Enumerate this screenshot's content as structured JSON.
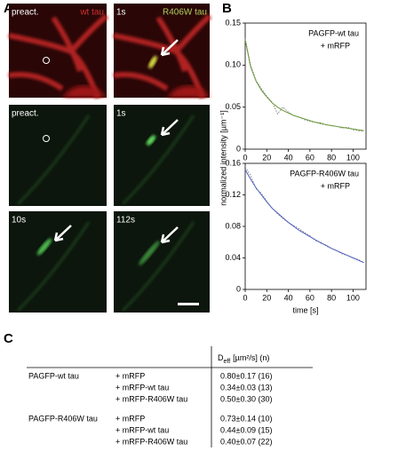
{
  "panel_labels": {
    "a": "A",
    "b": "B",
    "c": "C"
  },
  "panel_a": {
    "top_left": "preact.",
    "red_label": "wt tau",
    "top_right": "1s",
    "green_label": "R406W tau",
    "mid_left": "preact.",
    "mid_right": "1s",
    "bottom_left": "10s",
    "bottom_right": "112s"
  },
  "chart_data": [
    {
      "type": "line",
      "annotation": [
        "PAGFP-wt tau",
        "+ mRFP"
      ],
      "ylabel": "normalized intensity [µm⁻¹]",
      "x": [
        0,
        5,
        10,
        15,
        20,
        25,
        30,
        35,
        40,
        45,
        50,
        55,
        60,
        65,
        70,
        75,
        80,
        85,
        90,
        95,
        100,
        105,
        110
      ],
      "series": [
        {
          "color": "#777777",
          "values": [
            0.132,
            0.1,
            0.082,
            0.072,
            0.063,
            0.056,
            0.042,
            0.05,
            0.044,
            0.04,
            0.038,
            0.035,
            0.033,
            0.032,
            0.03,
            0.029,
            0.028,
            0.027,
            0.025,
            0.026,
            0.023,
            0.022,
            0.021
          ]
        },
        {
          "color": "#6a9a3a",
          "values": [
            0.13,
            0.098,
            0.081,
            0.07,
            0.062,
            0.055,
            0.05,
            0.046,
            0.043,
            0.04,
            0.038,
            0.036,
            0.034,
            0.032,
            0.031,
            0.029,
            0.028,
            0.027,
            0.026,
            0.025,
            0.024,
            0.023,
            0.022
          ]
        }
      ],
      "xlim": [
        0,
        112
      ],
      "xticks": [
        0,
        20,
        40,
        60,
        80,
        100
      ],
      "ylim": [
        0,
        0.15
      ],
      "yticks": [
        0,
        0.05,
        {
          "value": 0.1,
          "label": "0.10"
        },
        0.15
      ]
    },
    {
      "type": "line",
      "annotation": [
        "PAGFP-R406W tau",
        "+ mRFP"
      ],
      "xlabel": "time [s]",
      "x": [
        0,
        5,
        10,
        15,
        20,
        25,
        30,
        35,
        40,
        45,
        50,
        55,
        60,
        65,
        70,
        75,
        80,
        85,
        90,
        95,
        100,
        105,
        110
      ],
      "series": [
        {
          "color": "#777777",
          "values": [
            0.155,
            0.145,
            0.128,
            0.122,
            0.112,
            0.103,
            0.096,
            0.09,
            0.085,
            0.081,
            0.077,
            0.072,
            0.068,
            0.062,
            0.06,
            0.055,
            0.052,
            0.049,
            0.045,
            0.043,
            0.04,
            0.038,
            0.034
          ]
        },
        {
          "color": "#5060c0",
          "values": [
            0.152,
            0.14,
            0.129,
            0.12,
            0.111,
            0.103,
            0.097,
            0.091,
            0.085,
            0.08,
            0.075,
            0.071,
            0.067,
            0.063,
            0.059,
            0.056,
            0.052,
            0.049,
            0.046,
            0.043,
            0.04,
            0.037,
            0.034
          ]
        }
      ],
      "xlim": [
        0,
        112
      ],
      "xticks": [
        0,
        20,
        40,
        60,
        80,
        100
      ],
      "ylim": [
        0,
        0.16
      ],
      "yticks": [
        0,
        0.04,
        0.08,
        0.12,
        0.16
      ]
    }
  ],
  "table": {
    "header": {
      "symbol": "D",
      "subscript": "eff",
      "unit": "[µm²/s] (n)"
    },
    "groups": [
      {
        "name": "PAGFP-wt tau",
        "rows": [
          {
            "condition": "+ mRFP",
            "value": "0.80±0.17 (16)"
          },
          {
            "condition": "+ mRFP-wt tau",
            "value": "0.34±0.03 (13)"
          },
          {
            "condition": "+ mRFP-R406W tau",
            "value": "0.50±0.30 (30)"
          }
        ]
      },
      {
        "name": "PAGFP-R406W tau",
        "rows": [
          {
            "condition": "+ mRFP",
            "value": "0.73±0.14 (10)"
          },
          {
            "condition": "+ mRFP-wt tau",
            "value": "0.44±0.09 (15)"
          },
          {
            "condition": "+ mRFP-R406W tau",
            "value": "0.40±0.07 (22)"
          }
        ]
      }
    ]
  }
}
